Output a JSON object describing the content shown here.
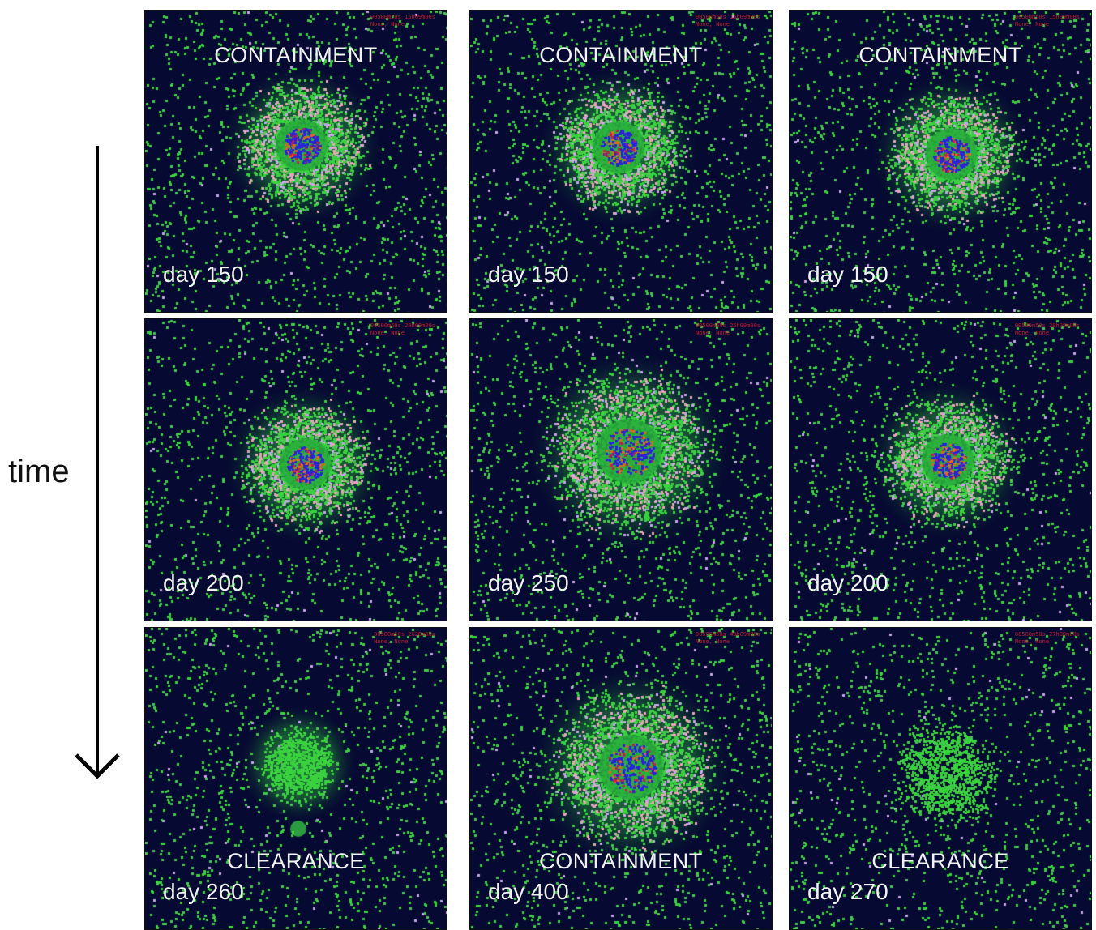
{
  "axis_label": "time",
  "columns": [
    {
      "panels": [
        {
          "day": "day 150",
          "outcome": "CONTAINMENT",
          "outcome_pos": "top",
          "header": [
            "00500m50s 15h09m00s",
            "None, None"
          ],
          "blob": "lesion"
        },
        {
          "day": "day 200",
          "outcome": "",
          "outcome_pos": "top",
          "header": [
            "00500m50s 20h09m00s",
            "None, None"
          ],
          "blob": "lesion"
        },
        {
          "day": "day 260",
          "outcome": "CLEARANCE",
          "outcome_pos": "bottom",
          "header": [
            "00500m50s 2626m00s",
            "None, None"
          ],
          "blob": "cleared"
        }
      ]
    },
    {
      "panels": [
        {
          "day": "day 150",
          "outcome": "CONTAINMENT",
          "outcome_pos": "top",
          "header": [
            "00500m50s 15h09m00s",
            "None, None"
          ],
          "blob": "lesion"
        },
        {
          "day": "day 250",
          "outcome": "",
          "outcome_pos": "top",
          "header": [
            "00500m50s 25h09m00s",
            "None, None"
          ],
          "blob": "lesion-large"
        },
        {
          "day": "day 400",
          "outcome": "CONTAINMENT",
          "outcome_pos": "bottom",
          "header": [
            "00500m50s 40h09m00s",
            "None, None"
          ],
          "blob": "lesion-large"
        }
      ]
    },
    {
      "panels": [
        {
          "day": "day 150",
          "outcome": "CONTAINMENT",
          "outcome_pos": "top",
          "header": [
            "00500m50s 15h09m00s",
            "None, None"
          ],
          "blob": "lesion"
        },
        {
          "day": "day 200",
          "outcome": "",
          "outcome_pos": "top",
          "header": [
            "00500m50s 20h09m00s",
            "None, None"
          ],
          "blob": "lesion"
        },
        {
          "day": "day 270",
          "outcome": "CLEARANCE",
          "outcome_pos": "bottom",
          "header": [
            "00500m50s 27h09m00s",
            "None, None"
          ],
          "blob": "faint"
        }
      ]
    }
  ],
  "colors": {
    "background": "#060a33",
    "agent_green": "#3ad13f",
    "core_blue": "#2b23d8",
    "core_orange": "#e06a1a",
    "pink": "#e8a4b8",
    "lilac": "#c9a6e8",
    "header_red": "#c21a2c"
  }
}
